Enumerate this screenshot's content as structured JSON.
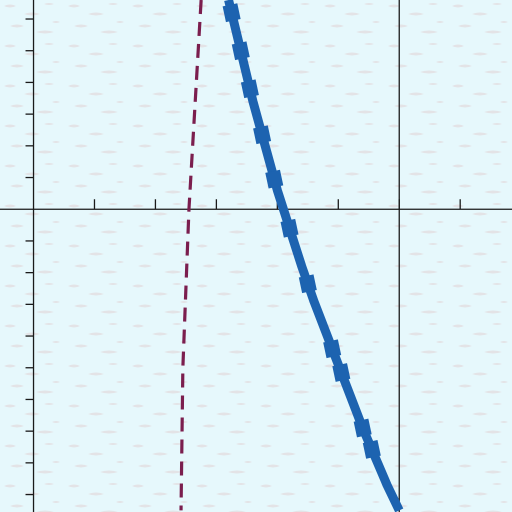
{
  "chart_data": {
    "type": "line",
    "title": "",
    "xlabel": "",
    "ylabel": "",
    "xlim": [
      -0.55,
      7.85
    ],
    "ylim": [
      -9.55,
      6.6
    ],
    "grid": false,
    "axes_through_origin": true,
    "major_vertical_lines_x": [
      0,
      6
    ],
    "x_ticks_minor_step": 1,
    "y_ticks_minor_step": 1,
    "colors": {
      "background": "#e6f8fc",
      "texture": "#e3e1e4",
      "axis": "#1a1a1a",
      "main_curve": "#1d63b0",
      "dashed_line": "#7b1e4e"
    },
    "series": [
      {
        "style": "solid-thick-with-square-markers",
        "points": [
          [
            3.2,
            6.6
          ],
          [
            3.4,
            5.0
          ],
          [
            3.6,
            3.4
          ],
          [
            3.8,
            2.0
          ],
          [
            4.0,
            0.6
          ],
          [
            4.2,
            -0.6
          ],
          [
            4.4,
            -1.8
          ],
          [
            4.6,
            -2.9
          ],
          [
            4.8,
            -3.9
          ],
          [
            5.0,
            -4.9
          ],
          [
            5.2,
            -5.9
          ],
          [
            5.4,
            -6.9
          ],
          [
            5.6,
            -7.8
          ],
          [
            5.8,
            -8.7
          ],
          [
            6.0,
            -9.5
          ]
        ],
        "markers_x": [
          3.25,
          3.4,
          3.55,
          3.75,
          3.95,
          4.2,
          4.5,
          4.9,
          5.05,
          5.4,
          5.55
        ]
      },
      {
        "style": "dashed",
        "points": [
          [
            2.75,
            6.6
          ],
          [
            2.55,
            0.0
          ],
          [
            2.45,
            -5.0
          ],
          [
            2.42,
            -9.5
          ]
        ]
      }
    ]
  }
}
